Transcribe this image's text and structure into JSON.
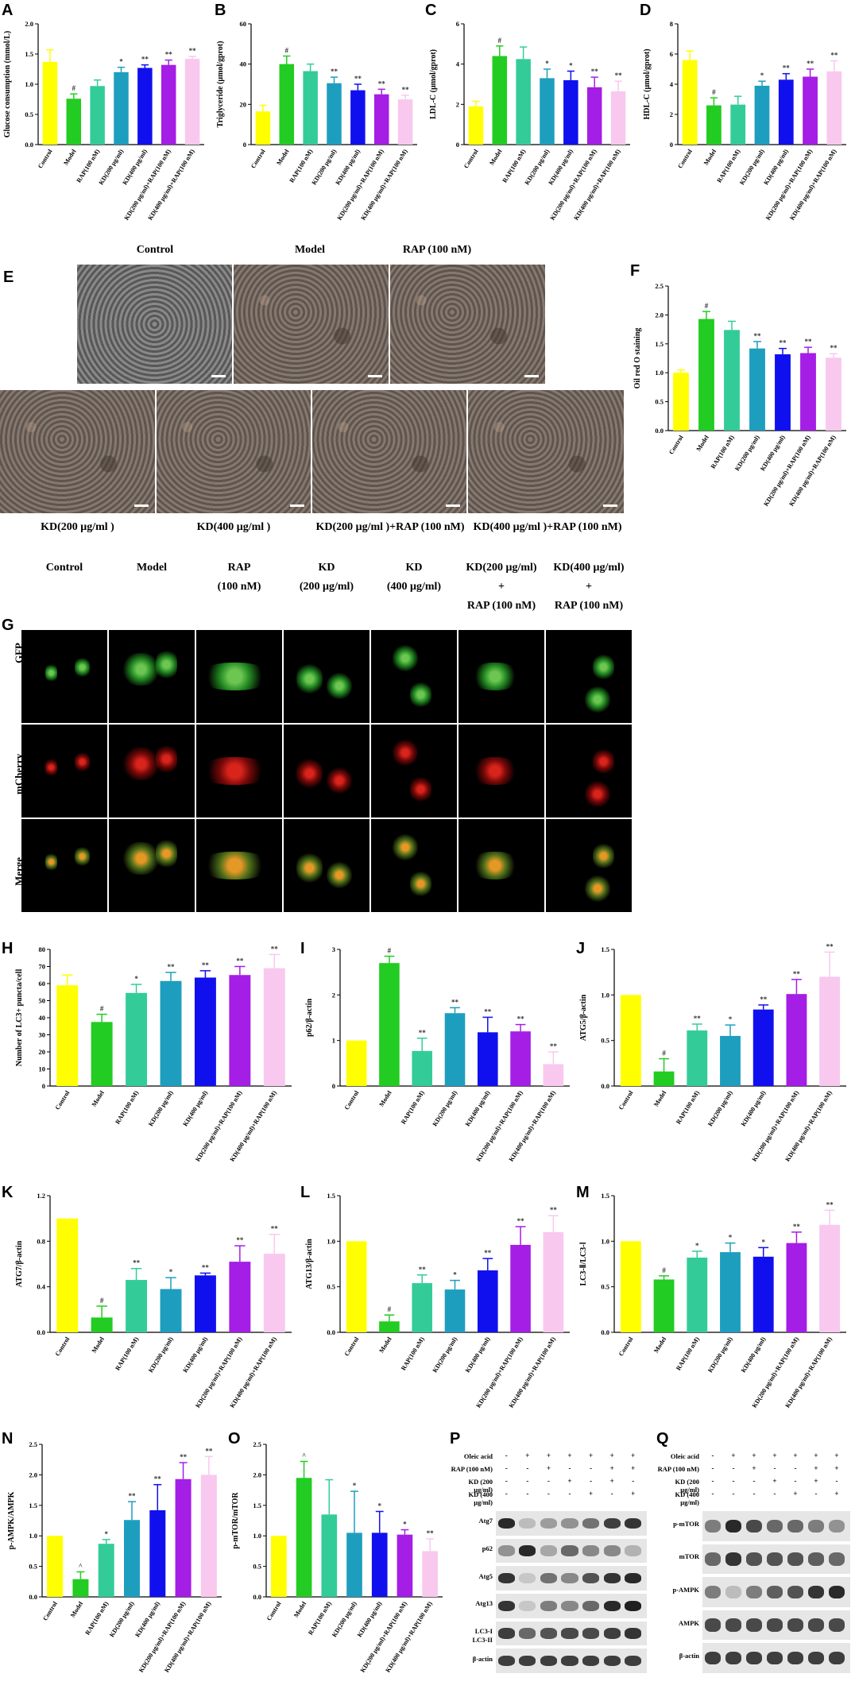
{
  "panels": {
    "A": "A",
    "B": "B",
    "C": "C",
    "D": "D",
    "E": "E",
    "F": "F",
    "G": "G",
    "H": "H",
    "I": "I",
    "J": "J",
    "K": "K",
    "L": "L",
    "M": "M",
    "N": "N",
    "O": "O",
    "P": "P",
    "Q": "Q"
  },
  "colors": [
    "#ffff00",
    "#22cc22",
    "#33cc99",
    "#1e9ebf",
    "#1010ee",
    "#a41ee6",
    "#f9c8ee"
  ],
  "chart_data": [
    {
      "id": "A",
      "type": "bar",
      "ylabel": "Glucose consumption (mmol/L)",
      "ylim": [
        0,
        2.0
      ],
      "yticks": [
        "0.0",
        "0.5",
        "1.0",
        "1.5",
        "2.0"
      ],
      "categories": [
        "Control",
        "Model",
        "RAP(100 nM)",
        "KD(200 μg/ml)",
        "KD(400 μg/ml)",
        "KD(200 μg/ml)+RAP(100 nM)",
        "KD(400 μg/ml)+RAP(100 nM)"
      ],
      "values": [
        1.37,
        0.76,
        0.97,
        1.2,
        1.27,
        1.32,
        1.42
      ],
      "errors": [
        0.2,
        0.08,
        0.1,
        0.08,
        0.05,
        0.08,
        0.04
      ],
      "sig": [
        "",
        "#",
        "",
        "*",
        "**",
        "**",
        "**"
      ]
    },
    {
      "id": "B",
      "type": "bar",
      "ylabel": "Triglyceride (μmol/gprot)",
      "ylim": [
        0,
        60
      ],
      "yticks": [
        "0",
        "20",
        "40",
        "60"
      ],
      "categories": [
        "Control",
        "Model",
        "RAP(100 nM)",
        "KD(200 μg/ml)",
        "KD(400 μg/ml)",
        "KD(200 μg/ml)+RAP(100 nM)",
        "KD(400 μg/ml)+RAP(100 nM)"
      ],
      "values": [
        16.5,
        40,
        36.5,
        30.5,
        27,
        25,
        22.5
      ],
      "errors": [
        3,
        4,
        3.5,
        3,
        3,
        2.5,
        2
      ],
      "sig": [
        "",
        "#",
        "",
        "**",
        "**",
        "**",
        "**"
      ]
    },
    {
      "id": "C",
      "type": "bar",
      "ylabel": "LDL-C (μmol/gprot)",
      "ylim": [
        0,
        6
      ],
      "yticks": [
        "0",
        "2",
        "4",
        "6"
      ],
      "categories": [
        "Control",
        "Model",
        "RAP(100 nM)",
        "KD(200 μg/ml)",
        "KD(400 μg/ml)",
        "KD(200 μg/ml)+RAP(100 nM)",
        "KD(400 μg/ml)+RAP(100 nM)"
      ],
      "values": [
        1.9,
        4.4,
        4.25,
        3.3,
        3.2,
        2.85,
        2.65
      ],
      "errors": [
        0.25,
        0.5,
        0.6,
        0.45,
        0.45,
        0.5,
        0.5
      ],
      "sig": [
        "",
        "#",
        "",
        "*",
        "*",
        "**",
        "**"
      ]
    },
    {
      "id": "D",
      "type": "bar",
      "ylabel": "HDL-C (μmol/gprot)",
      "ylim": [
        0,
        8
      ],
      "yticks": [
        "0",
        "2",
        "4",
        "6",
        "8"
      ],
      "categories": [
        "Control",
        "Model",
        "RAP(100 nM)",
        "KD(200 μg/ml)",
        "KD(400 μg/ml)",
        "KD(200 μg/ml)+RAP(100 nM)",
        "KD(400 μg/ml)+RAP(100 nM)"
      ],
      "values": [
        5.6,
        2.6,
        2.65,
        3.9,
        4.3,
        4.5,
        4.85
      ],
      "errors": [
        0.6,
        0.5,
        0.55,
        0.3,
        0.4,
        0.5,
        0.7
      ],
      "sig": [
        "",
        "#",
        "",
        "*",
        "**",
        "**",
        "**"
      ]
    },
    {
      "id": "F",
      "type": "bar",
      "ylabel": "Oil red O staining",
      "ylim": [
        0,
        2.5
      ],
      "yticks": [
        "0.0",
        "0.5",
        "1.0",
        "1.5",
        "2.0",
        "2.5"
      ],
      "categories": [
        "Control",
        "Model",
        "RAP(100 nM)",
        "KD(200 μg/ml)",
        "KD(400 μg/ml)",
        "KD(200 μg/ml)+RAP(100 nM)",
        "KD(400 μg/ml)+RAP(100 nM)"
      ],
      "values": [
        1.0,
        1.93,
        1.74,
        1.42,
        1.32,
        1.34,
        1.26
      ],
      "errors": [
        0.05,
        0.13,
        0.15,
        0.12,
        0.1,
        0.1,
        0.07
      ],
      "sig": [
        "",
        "#",
        "",
        "**",
        "**",
        "**",
        "**"
      ]
    },
    {
      "id": "H",
      "type": "bar",
      "ylabel": "Number of LC3+ puncta/cell",
      "ylim": [
        0,
        80
      ],
      "yticks": [
        "0",
        "10",
        "20",
        "30",
        "40",
        "50",
        "60",
        "70",
        "80"
      ],
      "categories": [
        "Control",
        "Model",
        "RAP(100 nM)",
        "KD(200 μg/ml)",
        "KD(400 μg/ml)",
        "KD(200 μg/ml)+RAP(100 nM)",
        "KD(400 μg/ml)+RAP(100 nM)"
      ],
      "values": [
        59,
        37.5,
        54.5,
        61.5,
        63.5,
        65,
        69
      ],
      "errors": [
        6,
        4.5,
        5,
        5,
        4,
        5,
        8
      ],
      "sig": [
        "",
        "#",
        "*",
        "**",
        "**",
        "**",
        "**"
      ]
    },
    {
      "id": "I",
      "type": "bar",
      "ylabel": "p62/β-actin",
      "ylim": [
        0,
        3
      ],
      "yticks": [
        "0",
        "1",
        "2",
        "3"
      ],
      "categories": [
        "Control",
        "Model",
        "RAP(100 nM)",
        "KD(200 μg/ml)",
        "KD(400 μg/ml)",
        "KD(200 μg/ml)+RAP(100 nM)",
        "KD(400 μg/ml)+RAP(100 nM)"
      ],
      "values": [
        1.0,
        2.7,
        0.77,
        1.6,
        1.18,
        1.2,
        0.48
      ],
      "errors": [
        0,
        0.15,
        0.28,
        0.12,
        0.33,
        0.15,
        0.27
      ],
      "sig": [
        "",
        "#",
        "**",
        "**",
        "**",
        "**",
        "**"
      ]
    },
    {
      "id": "J",
      "type": "bar",
      "ylabel": "ATG5/β-actin",
      "ylim": [
        0,
        1.5
      ],
      "yticks": [
        "0.0",
        "0.5",
        "1.0",
        "1.5"
      ],
      "categories": [
        "Control",
        "Model",
        "RAP(100 nM)",
        "KD(200 μg/ml)",
        "KD(400 μg/ml)",
        "KD(200 μg/ml)+RAP(100 nM)",
        "KD(400 μg/ml)+RAP(100 nM)"
      ],
      "values": [
        1.0,
        0.16,
        0.61,
        0.55,
        0.84,
        1.01,
        1.2
      ],
      "errors": [
        0,
        0.14,
        0.07,
        0.12,
        0.05,
        0.16,
        0.27
      ],
      "sig": [
        "",
        "#",
        "**",
        "*",
        "**",
        "**",
        "**"
      ]
    },
    {
      "id": "K",
      "type": "bar",
      "ylabel": "ATG7/β-actin",
      "ylim": [
        0,
        1.2
      ],
      "yticks": [
        "0.0",
        "0.4",
        "0.8",
        "1.2"
      ],
      "categories": [
        "Control",
        "Model",
        "RAP(100 nM)",
        "KD(200 μg/ml)",
        "KD(400 μg/ml)",
        "KD(200 μg/ml)+RAP(100 nM)",
        "KD(400 μg/ml)+RAP(100 nM)"
      ],
      "values": [
        1.0,
        0.13,
        0.46,
        0.38,
        0.5,
        0.62,
        0.69
      ],
      "errors": [
        0,
        0.1,
        0.1,
        0.1,
        0.02,
        0.14,
        0.17
      ],
      "sig": [
        "",
        "#",
        "**",
        "*",
        "**",
        "**",
        "**"
      ]
    },
    {
      "id": "L",
      "type": "bar",
      "ylabel": "ATG13/β-actin",
      "ylim": [
        0,
        1.5
      ],
      "yticks": [
        "0.0",
        "0.5",
        "1.0",
        "1.5"
      ],
      "categories": [
        "Control",
        "Model",
        "RAP(100 nM)",
        "KD(200 μg/ml)",
        "KD(400 μg/ml)",
        "KD(200 μg/ml)+RAP(100 nM)",
        "KD(400 μg/ml)+RAP(100 nM)"
      ],
      "values": [
        1.0,
        0.12,
        0.54,
        0.47,
        0.68,
        0.96,
        1.1
      ],
      "errors": [
        0,
        0.07,
        0.09,
        0.1,
        0.13,
        0.2,
        0.18
      ],
      "sig": [
        "",
        "#",
        "**",
        "*",
        "**",
        "**",
        "**"
      ]
    },
    {
      "id": "M",
      "type": "bar",
      "ylabel": "LC3-Ⅱ/LC3-Ⅰ",
      "ylim": [
        0,
        1.5
      ],
      "yticks": [
        "0.0",
        "0.5",
        "1.0",
        "1.5"
      ],
      "categories": [
        "Control",
        "Model",
        "RAP(100 nM)",
        "KD(200 μg/ml)",
        "KD(400 μg/ml)",
        "KD(200 μg/ml)+RAP(100 nM)",
        "KD(400 μg/ml)+RAP(100 nM)"
      ],
      "values": [
        1.0,
        0.58,
        0.82,
        0.88,
        0.83,
        0.98,
        1.18
      ],
      "errors": [
        0,
        0.04,
        0.07,
        0.1,
        0.1,
        0.12,
        0.16
      ],
      "sig": [
        "",
        "#",
        "*",
        "*",
        "*",
        "**",
        "**"
      ]
    },
    {
      "id": "N",
      "type": "bar",
      "ylabel": "p-AMPK/AMPK",
      "ylim": [
        0,
        2.5
      ],
      "yticks": [
        "0.0",
        "0.5",
        "1.0",
        "1.5",
        "2.0",
        "2.5"
      ],
      "categories": [
        "Control",
        "Model",
        "RAP(100 nM)",
        "KD(200 μg/ml)",
        "KD(400 μg/ml)",
        "KD(200 μg/ml)+RAP(100 nM)",
        "KD(400 μg/ml)+RAP(100 nM)"
      ],
      "values": [
        1.0,
        0.29,
        0.87,
        1.26,
        1.42,
        1.93,
        2.0
      ],
      "errors": [
        0,
        0.12,
        0.07,
        0.3,
        0.42,
        0.27,
        0.3
      ],
      "sig": [
        "",
        "^",
        "*",
        "**",
        "**",
        "**",
        "**"
      ]
    },
    {
      "id": "O",
      "type": "bar",
      "ylabel": "p-mTOR/mTOR",
      "ylim": [
        0,
        2.5
      ],
      "yticks": [
        "0.0",
        "0.5",
        "1.0",
        "1.5",
        "2.0",
        "2.5"
      ],
      "categories": [
        "Control",
        "Model",
        "RAP(100 nM)",
        "KD(200 μg/ml)",
        "KD(400 μg/ml)",
        "KD(200 μg/ml)+RAP(100 nM)",
        "KD(400 μg/ml)+RAP(100 nM)"
      ],
      "values": [
        1.0,
        1.95,
        1.35,
        1.05,
        1.05,
        1.02,
        0.75
      ],
      "errors": [
        0,
        0.27,
        0.57,
        0.68,
        0.35,
        0.08,
        0.2
      ],
      "sig": [
        "",
        "^",
        "",
        "*",
        "*",
        "*",
        "**"
      ]
    }
  ],
  "micrographs": {
    "top_labels": [
      "Control",
      "Model",
      "RAP (100 nM)"
    ],
    "bottom_labels": [
      "KD(200 μg/ml )",
      "KD(400 μg/ml )",
      "KD(200 μg/ml )+RAP (100 nM)",
      "KD(400 μg/ml )+RAP (100 nM)"
    ]
  },
  "fluorescence": {
    "columns": [
      {
        "line1": "Control",
        "line2": "",
        "line3": ""
      },
      {
        "line1": "Model",
        "line2": "",
        "line3": ""
      },
      {
        "line1": "RAP",
        "line2": "(100 nM)",
        "line3": ""
      },
      {
        "line1": "KD",
        "line2": "(200 μg/ml)",
        "line3": ""
      },
      {
        "line1": "KD",
        "line2": "(400 μg/ml)",
        "line3": ""
      },
      {
        "line1": "KD(200 μg/ml)",
        "line2": "+",
        "line3": "RAP (100 nM)"
      },
      {
        "line1": "KD(400 μg/ml)",
        "line2": "+",
        "line3": "RAP (100 nM)"
      }
    ],
    "rows": [
      "GFP",
      "mCherry",
      "Merge"
    ]
  },
  "blot_P": {
    "conditions": [
      {
        "label": "Oleic acid",
        "signs": [
          "-",
          "+",
          "+",
          "+",
          "+",
          "+",
          "+"
        ]
      },
      {
        "label": "RAP (100 nM)",
        "signs": [
          "-",
          "-",
          "+",
          "-",
          "-",
          "+",
          "+"
        ]
      },
      {
        "label": "KD (200 μg/ml)",
        "signs": [
          "-",
          "-",
          "-",
          "+",
          "-",
          "+",
          "-"
        ]
      },
      {
        "label": "KD (400 μg/ml)",
        "signs": [
          "-",
          "-",
          "-",
          "-",
          "+",
          "-",
          "+"
        ]
      }
    ],
    "rows": [
      "Atg7",
      "p62",
      "Atg5",
      "Atg13",
      "LC3-I\nLC3-II",
      "β-actin"
    ],
    "intensity": [
      [
        0.9,
        0.2,
        0.35,
        0.4,
        0.55,
        0.8,
        0.85
      ],
      [
        0.4,
        0.9,
        0.3,
        0.6,
        0.45,
        0.45,
        0.25
      ],
      [
        0.85,
        0.15,
        0.55,
        0.45,
        0.7,
        0.85,
        0.9
      ],
      [
        0.85,
        0.15,
        0.5,
        0.45,
        0.6,
        0.9,
        0.95
      ],
      [
        0.8,
        0.6,
        0.7,
        0.75,
        0.75,
        0.8,
        0.85
      ],
      [
        0.8,
        0.8,
        0.8,
        0.8,
        0.8,
        0.8,
        0.8
      ]
    ]
  },
  "blot_Q": {
    "conditions": [
      {
        "label": "Oleic acid",
        "signs": [
          "-",
          "+",
          "+",
          "+",
          "+",
          "+",
          "+"
        ]
      },
      {
        "label": "RAP (100 nM)",
        "signs": [
          "-",
          "-",
          "+",
          "-",
          "-",
          "+",
          "+"
        ]
      },
      {
        "label": "KD (200 μg/ml)",
        "signs": [
          "-",
          "-",
          "-",
          "+",
          "-",
          "+",
          "-"
        ]
      },
      {
        "label": "KD (400 μg/ml)",
        "signs": [
          "-",
          "-",
          "-",
          "-",
          "+",
          "-",
          "+"
        ]
      }
    ],
    "rows": [
      "p-mTOR",
      "mTOR",
      "p-AMPK",
      "AMPK",
      "β-actin"
    ],
    "intensity": [
      [
        0.5,
        0.9,
        0.75,
        0.6,
        0.6,
        0.5,
        0.4
      ],
      [
        0.6,
        0.85,
        0.7,
        0.7,
        0.7,
        0.65,
        0.6
      ],
      [
        0.5,
        0.2,
        0.5,
        0.65,
        0.7,
        0.85,
        0.9
      ],
      [
        0.75,
        0.75,
        0.75,
        0.75,
        0.75,
        0.75,
        0.75
      ],
      [
        0.8,
        0.8,
        0.8,
        0.8,
        0.8,
        0.8,
        0.8
      ]
    ]
  }
}
